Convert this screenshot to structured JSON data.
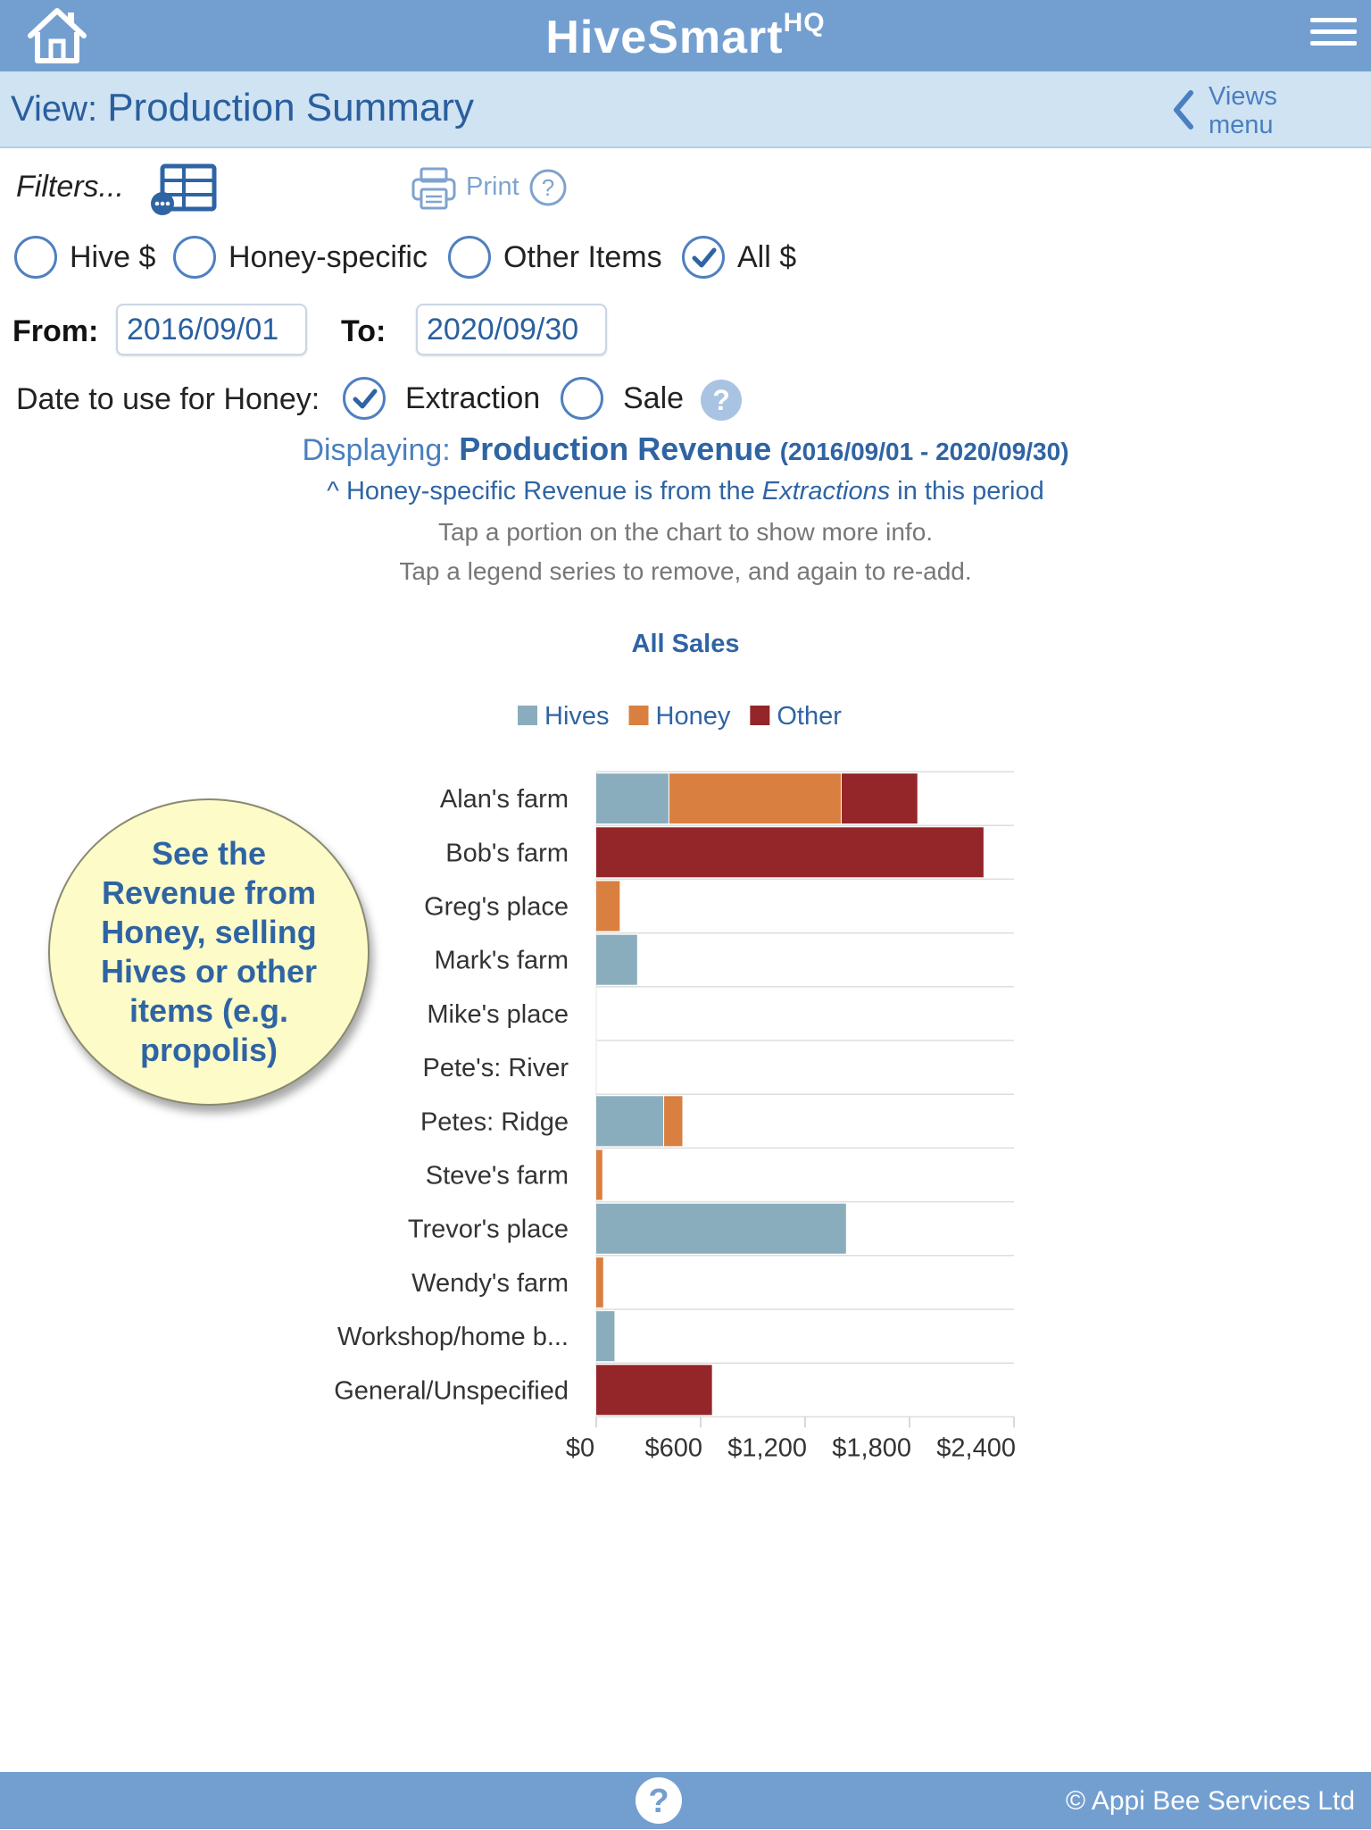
{
  "app": {
    "title": "HiveSmart",
    "title_sup": "HQ",
    "home_icon": "home-icon",
    "menu_icon": "hamburger-icon"
  },
  "view": {
    "label": "View: ",
    "title": "Production Summary",
    "views_menu_line1": "Views",
    "views_menu_line2": "menu"
  },
  "filters": {
    "label": "Filters...",
    "print_label": "Print"
  },
  "category_options": [
    {
      "label": "Hive $",
      "checked": false
    },
    {
      "label": "Honey-specific",
      "checked": false
    },
    {
      "label": "Other Items",
      "checked": false
    },
    {
      "label": "All $",
      "checked": true
    }
  ],
  "dates": {
    "from_label": "From:",
    "from_value": "2016/09/01",
    "to_label": "To:",
    "to_value": "2020/09/30"
  },
  "honey_date": {
    "label": "Date to use for Honey:",
    "options": [
      {
        "label": "Extraction",
        "checked": true
      },
      {
        "label": "Sale",
        "checked": false
      }
    ]
  },
  "display": {
    "prefix": "Displaying: ",
    "main": "Production Revenue",
    "range": "(2016/09/01 - 2020/09/30)",
    "note_prefix": "^ Honey-specific Revenue is from the ",
    "note_em": "Extractions",
    "note_suffix": " in this period",
    "hint1": "Tap a portion on the chart to show more info.",
    "hint2": "Tap a legend series to remove, and again to re-add."
  },
  "callout": {
    "text": "See the Revenue from Honey, selling Hives or other items (e.g. propolis)"
  },
  "footer": {
    "copyright": "© Appi Bee Services Ltd"
  },
  "colors": {
    "hives": "#8aadbd",
    "honey": "#d98040",
    "other": "#94262a",
    "accent": "#739fd0"
  },
  "chart_data": {
    "type": "bar",
    "orientation": "horizontal",
    "stacked": true,
    "title": "All Sales",
    "categories": [
      "Alan's farm",
      "Bob's farm",
      "Greg's place",
      "Mark's farm",
      "Mike's place",
      "Pete's: River",
      "Petes: Ridge",
      "Steve's farm",
      "Trevor's place",
      "Wendy's farm",
      "Workshop/home b...",
      "General/Unspecified"
    ],
    "series": [
      {
        "name": "Hives",
        "color": "#8aadbd",
        "values": [
          420,
          0,
          0,
          240,
          0,
          0,
          390,
          0,
          1440,
          0,
          110,
          0
        ]
      },
      {
        "name": "Honey",
        "color": "#d98040",
        "values": [
          990,
          0,
          140,
          0,
          0,
          0,
          110,
          40,
          0,
          45,
          0,
          0
        ]
      },
      {
        "name": "Other",
        "color": "#94262a",
        "values": [
          440,
          2230,
          0,
          0,
          0,
          0,
          0,
          0,
          0,
          0,
          0,
          670
        ]
      }
    ],
    "xlim": [
      0,
      2400
    ],
    "xticks": [
      "$0",
      "$600",
      "$1,200",
      "$1,800",
      "$2,400"
    ],
    "legend_position": "top"
  }
}
